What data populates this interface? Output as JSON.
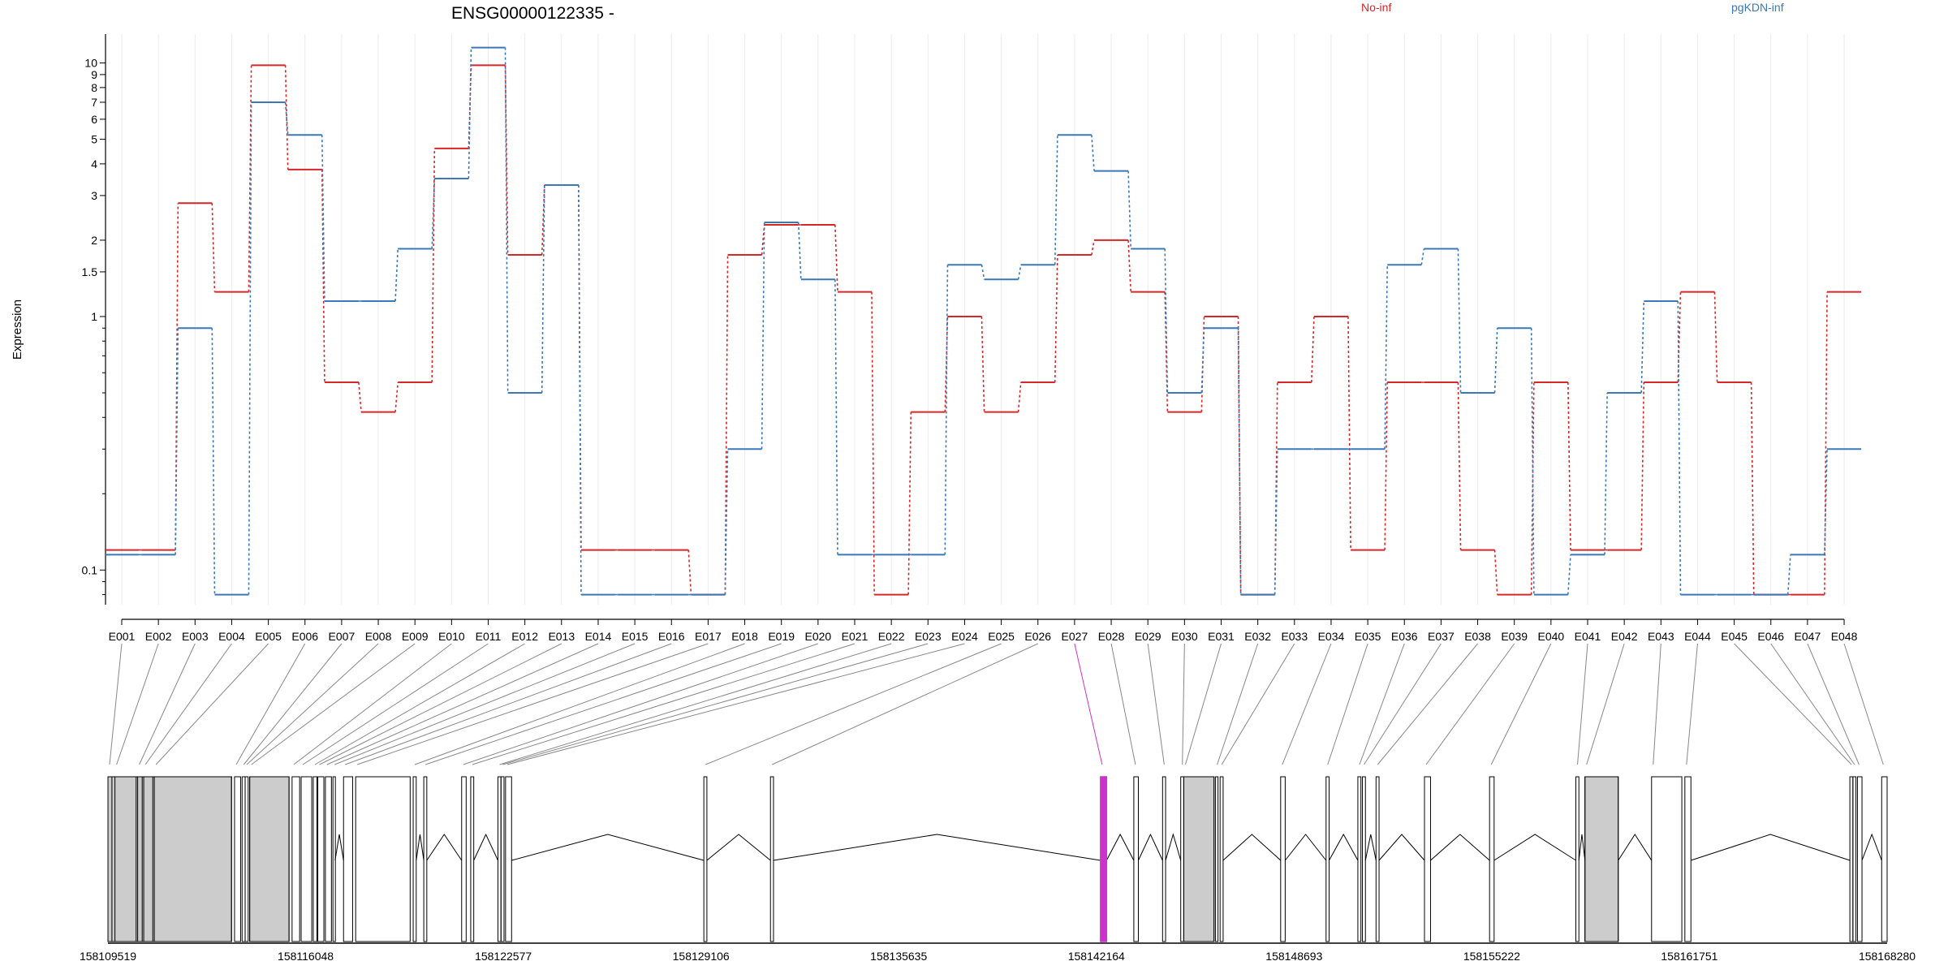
{
  "chart_data": {
    "type": "line",
    "title": "ENSG00000122335 -",
    "ylabel": "Expression",
    "y_scale": "log",
    "ylim": [
      0.073,
      13
    ],
    "yticks": [
      0.1,
      1,
      1.5,
      2,
      3,
      4,
      5,
      6,
      7,
      8,
      9,
      10
    ],
    "ytick_labels": [
      "0.1",
      "1",
      "1.5",
      "2",
      "3",
      "4",
      "5",
      "6",
      "7",
      "8",
      "9",
      "10"
    ],
    "categories": [
      "E001",
      "E002",
      "E003",
      "E004",
      "E005",
      "E006",
      "E007",
      "E008",
      "E009",
      "E010",
      "E011",
      "E012",
      "E013",
      "E014",
      "E015",
      "E016",
      "E017",
      "E018",
      "E019",
      "E020",
      "E021",
      "E022",
      "E023",
      "E024",
      "E025",
      "E026",
      "E027",
      "E028",
      "E029",
      "E030",
      "E031",
      "E032",
      "E033",
      "E034",
      "E035",
      "E036",
      "E037",
      "E038",
      "E039",
      "E040",
      "E041",
      "E042",
      "E043",
      "E044",
      "E045",
      "E046",
      "E047",
      "E048"
    ],
    "series": [
      {
        "name": "No-inf",
        "color": "#d62728",
        "values": [
          0.12,
          0.12,
          2.8,
          1.25,
          9.8,
          3.8,
          0.55,
          0.42,
          0.55,
          4.6,
          9.8,
          1.75,
          3.3,
          0.12,
          0.12,
          0.12,
          0.08,
          1.75,
          2.3,
          2.3,
          1.25,
          0.08,
          0.42,
          1.0,
          0.42,
          0.55,
          1.75,
          2.0,
          1.25,
          0.42,
          1.0,
          0.08,
          0.55,
          1.0,
          0.12,
          0.55,
          0.55,
          0.12,
          0.08,
          0.55,
          0.12,
          0.12,
          0.55,
          1.25,
          0.55,
          0.08,
          0.08,
          1.25
        ]
      },
      {
        "name": "pgKDN-inf",
        "color": "#3a78b8",
        "values": [
          0.115,
          0.115,
          0.9,
          0.08,
          7.0,
          5.2,
          1.15,
          1.15,
          1.85,
          3.5,
          11.5,
          0.5,
          3.3,
          0.08,
          0.08,
          0.08,
          0.08,
          0.3,
          2.35,
          1.4,
          0.115,
          0.115,
          0.115,
          1.6,
          1.4,
          1.6,
          5.2,
          3.75,
          1.85,
          0.5,
          0.9,
          0.08,
          0.3,
          0.3,
          0.3,
          1.6,
          1.85,
          0.5,
          0.9,
          0.08,
          0.115,
          0.5,
          1.15,
          0.08,
          0.08,
          0.08,
          0.115,
          0.3
        ]
      }
    ],
    "highlighted_exon": "E027",
    "highlight_color": "#cc33cc",
    "genomic_axis_labels": [
      "158109519",
      "158116048",
      "158122577",
      "158129106",
      "158135635",
      "158142164",
      "158148693",
      "158155222",
      "158161751",
      "158168280"
    ],
    "genomic_range": [
      158109519,
      158168280
    ],
    "exon_positions": [
      [
        158109519,
        158109650
      ],
      [
        158109750,
        158110450
      ],
      [
        158110500,
        158110650
      ],
      [
        158110700,
        158111000
      ],
      [
        158111050,
        158113600
      ],
      [
        158113700,
        158113900
      ],
      [
        158113950,
        158114050
      ],
      [
        158114050,
        158114150
      ],
      [
        158114200,
        158115500
      ],
      [
        158115600,
        158115850
      ],
      [
        158115900,
        158116250
      ],
      [
        158116300,
        158116420
      ],
      [
        158116450,
        158116650
      ],
      [
        158116700,
        158116900
      ],
      [
        158116950,
        158117020
      ],
      [
        158117300,
        158117600
      ],
      [
        158117700,
        158119500
      ],
      [
        158119600,
        158119700
      ],
      [
        158119950,
        158120050
      ],
      [
        158121200,
        158121350
      ],
      [
        158121500,
        158121600
      ],
      [
        158122400,
        158122500
      ],
      [
        158122500,
        158122600
      ],
      [
        158122650,
        158122850
      ],
      [
        158129200,
        158129300
      ],
      [
        158131400,
        158131500
      ],
      [
        158142300,
        158142500
      ],
      [
        158143400,
        158143550
      ],
      [
        158144350,
        158144450
      ],
      [
        158144950,
        158145050
      ],
      [
        158145050,
        158146050
      ],
      [
        158146100,
        158146150
      ],
      [
        158146250,
        158146350
      ],
      [
        158148250,
        158148400
      ],
      [
        158149750,
        158149850
      ],
      [
        158150800,
        158150900
      ],
      [
        158150950,
        158151050
      ],
      [
        158151400,
        158151500
      ],
      [
        158153000,
        158153200
      ],
      [
        158155150,
        158155300
      ],
      [
        158158000,
        158158100
      ],
      [
        158158300,
        158159400
      ],
      [
        158160500,
        158161500
      ],
      [
        158161600,
        158161800
      ],
      [
        158167050,
        158167150
      ],
      [
        158167150,
        158167250
      ],
      [
        158167300,
        158167450
      ],
      [
        158168100,
        158168280
      ]
    ],
    "shaded_blocks": [
      [
        158109519,
        158113600
      ],
      [
        158114200,
        158115500
      ],
      [
        158145050,
        158146050
      ],
      [
        158158300,
        158159400
      ]
    ]
  }
}
